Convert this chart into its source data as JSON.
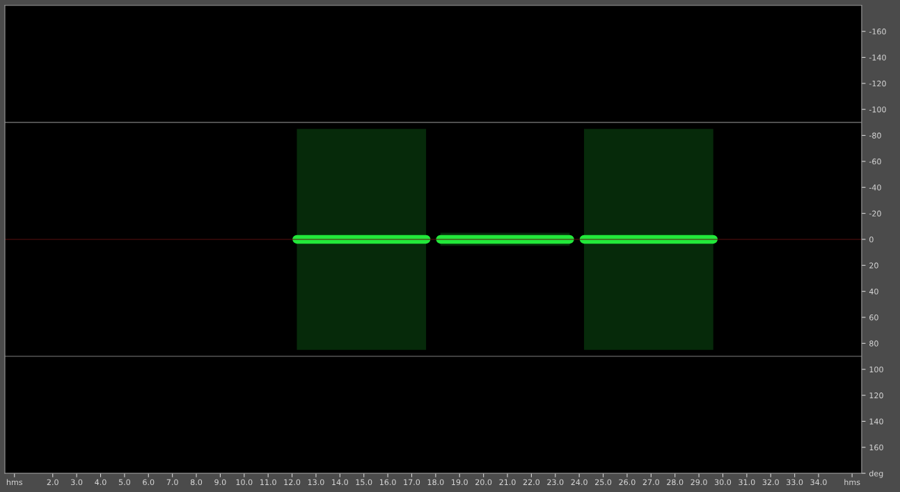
{
  "chart_data": {
    "type": "line",
    "x": [
      12.2,
      17.6,
      17.9,
      18.2,
      23.6,
      23.9,
      24.2,
      29.6
    ],
    "series": [
      {
        "color": "#22e83a",
        "values": [
          0,
          0,
          null,
          0,
          0,
          null,
          0,
          0
        ],
        "lower": [
          -85,
          -85,
          null,
          -5,
          -5,
          null,
          -85,
          -85
        ],
        "upper": [
          85,
          85,
          null,
          5,
          5,
          null,
          85,
          85
        ]
      }
    ],
    "xlim": [
      0,
      35.8
    ],
    "xticks": [
      {
        "value": 0.4,
        "label": "hms"
      },
      {
        "value": 2,
        "label": "2.0"
      },
      {
        "value": 3,
        "label": "3.0"
      },
      {
        "value": 4,
        "label": "4.0"
      },
      {
        "value": 5,
        "label": "5.0"
      },
      {
        "value": 6,
        "label": "6.0"
      },
      {
        "value": 7,
        "label": "7.0"
      },
      {
        "value": 8,
        "label": "8.0"
      },
      {
        "value": 9,
        "label": "9.0"
      },
      {
        "value": 10,
        "label": "10.0"
      },
      {
        "value": 11,
        "label": "11.0"
      },
      {
        "value": 12,
        "label": "12.0"
      },
      {
        "value": 13,
        "label": "13.0"
      },
      {
        "value": 14,
        "label": "14.0"
      },
      {
        "value": 15,
        "label": "15.0"
      },
      {
        "value": 16,
        "label": "16.0"
      },
      {
        "value": 17,
        "label": "17.0"
      },
      {
        "value": 18,
        "label": "18.0"
      },
      {
        "value": 19,
        "label": "19.0"
      },
      {
        "value": 20,
        "label": "20.0"
      },
      {
        "value": 21,
        "label": "21.0"
      },
      {
        "value": 22,
        "label": "22.0"
      },
      {
        "value": 23,
        "label": "23.0"
      },
      {
        "value": 24,
        "label": "24.0"
      },
      {
        "value": 25,
        "label": "25.0"
      },
      {
        "value": 26,
        "label": "26.0"
      },
      {
        "value": 27,
        "label": "27.0"
      },
      {
        "value": 28,
        "label": "28.0"
      },
      {
        "value": 29,
        "label": "29.0"
      },
      {
        "value": 30,
        "label": "30.0"
      },
      {
        "value": 31,
        "label": "31.0"
      },
      {
        "value": 32,
        "label": "32.0"
      },
      {
        "value": 33,
        "label": "33.0"
      },
      {
        "value": 34,
        "label": "34.0"
      },
      {
        "value": 35.4,
        "label": "hms"
      }
    ],
    "ylim": [
      180,
      -180
    ],
    "yticks": [
      -160,
      -140,
      -120,
      -100,
      -80,
      -60,
      -40,
      -20,
      0,
      20,
      40,
      60,
      80,
      100,
      120,
      140,
      160,
      {
        "value": 180,
        "label": "deg"
      }
    ],
    "ref_lines": [
      {
        "axis": "y",
        "value": -90,
        "color": "#808080"
      },
      {
        "axis": "y",
        "value": 90,
        "color": "#808080"
      },
      {
        "axis": "y",
        "value": 0,
        "color": "#5a1010"
      }
    ],
    "grid": false,
    "line_style": "solid",
    "legend": false
  }
}
